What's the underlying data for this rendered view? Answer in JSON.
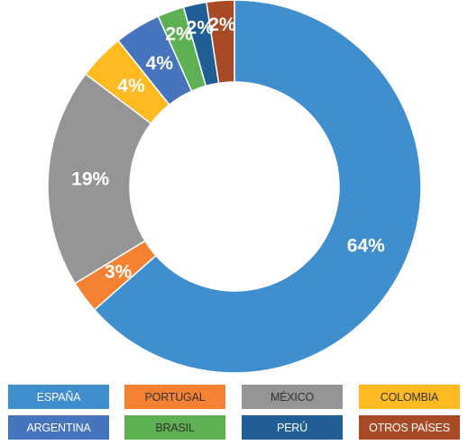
{
  "chart_data": {
    "type": "pie",
    "donut": true,
    "categories": [
      "ESPAÑA",
      "PORTUGAL",
      "MÉXICO",
      "COLOMBIA",
      "ARGENTINA",
      "BRASIL",
      "PERÚ",
      "OTROS PAÍSES"
    ],
    "values": [
      63.5,
      2.8,
      19,
      4,
      4,
      2.3,
      2,
      2.4
    ],
    "labels": [
      "64%",
      "3%",
      "19%",
      "4%",
      "4%",
      "2%",
      "2%",
      "2%"
    ],
    "colors": [
      "#3f8ecd",
      "#f58232",
      "#959596",
      "#fdbb21",
      "#4775bd",
      "#5db152",
      "#215e96",
      "#a94a26"
    ],
    "legend_label_colors": [
      "#ffffff",
      "#333333",
      "#333333",
      "#333333",
      "#ffffff",
      "#333333",
      "#ffffff",
      "#ffffff"
    ],
    "legend_placement": "bottom",
    "start": "12 o'clock, clockwise",
    "title": "",
    "xlabel": "",
    "ylabel": ""
  }
}
